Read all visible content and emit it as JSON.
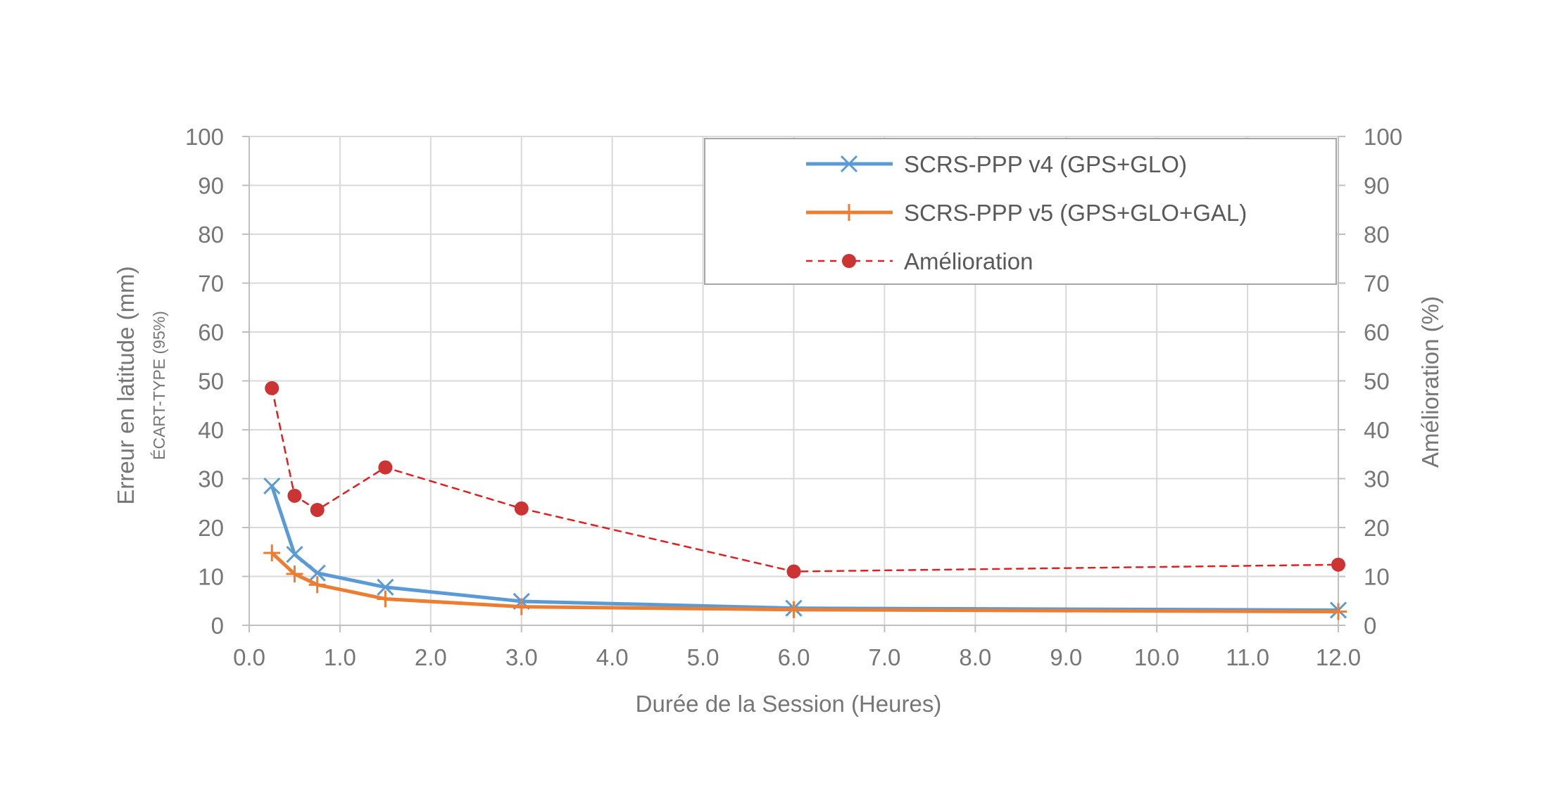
{
  "chart_data": {
    "type": "line",
    "xlabel": "Durée de la Session (Heures)",
    "ylabel_left": "Erreur en latitude (mm)",
    "ylabel_left_sub": "ÉCART-TYPE (95%)",
    "ylabel_right": "Amélioration (%)",
    "xlim": [
      0,
      12
    ],
    "ylim_left": [
      0,
      100
    ],
    "ylim_right": [
      0,
      100
    ],
    "x_ticks": [
      "0.0",
      "1.0",
      "2.0",
      "3.0",
      "4.0",
      "5.0",
      "6.0",
      "7.0",
      "8.0",
      "9.0",
      "10.0",
      "11.0",
      "12.0"
    ],
    "y_ticks": [
      "0",
      "10",
      "20",
      "30",
      "40",
      "50",
      "60",
      "70",
      "80",
      "90",
      "100"
    ],
    "grid": true,
    "legend_position": "top-right",
    "series": [
      {
        "name": "SCRS-PPP v4 (GPS+GLO)",
        "axis": "left",
        "color": "#5B9BD5",
        "marker": "x",
        "style": "solid",
        "x": [
          0.25,
          0.5,
          0.75,
          1.5,
          3.0,
          6.0,
          12.0
        ],
        "y": [
          28.5,
          14.5,
          10.7,
          7.8,
          4.9,
          3.5,
          3.1
        ]
      },
      {
        "name": "SCRS-PPP v5 (GPS+GLO+GAL)",
        "axis": "left",
        "color": "#ED7D31",
        "marker": "plus",
        "style": "solid",
        "x": [
          0.25,
          0.5,
          0.75,
          1.5,
          3.0,
          6.0,
          12.0
        ],
        "y": [
          14.8,
          10.5,
          8.3,
          5.4,
          3.8,
          3.2,
          2.8
        ]
      },
      {
        "name": "Amélioration",
        "axis": "right",
        "color": "#E02020",
        "marker_color": "#CC3333",
        "marker": "circle",
        "style": "dashed",
        "x": [
          0.25,
          0.5,
          0.75,
          1.5,
          3.0,
          6.0,
          12.0
        ],
        "y": [
          48.5,
          26.5,
          23.6,
          32.3,
          23.9,
          11.0,
          12.4
        ]
      }
    ]
  }
}
